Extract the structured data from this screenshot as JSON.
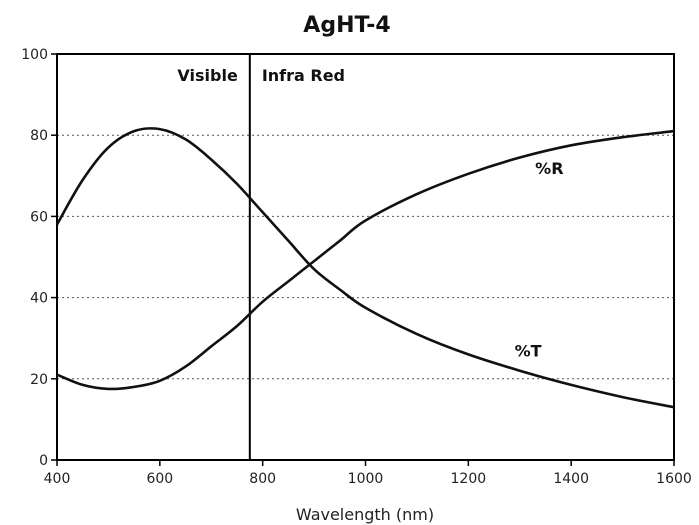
{
  "chart_data": {
    "type": "line",
    "title": "AgHT-4",
    "xlabel": "Wavelength (nm)",
    "ylabel": "",
    "xlim": [
      400,
      1600
    ],
    "ylim": [
      0,
      100
    ],
    "xticks": [
      400,
      600,
      800,
      1000,
      1200,
      1400,
      1600
    ],
    "yticks": [
      0,
      20,
      40,
      60,
      80,
      100
    ],
    "grid": "horizontal-dotted",
    "divider_x": 775,
    "regions": [
      {
        "label": "Visible",
        "side": "left"
      },
      {
        "label": "Infra Red",
        "side": "right"
      }
    ],
    "series": [
      {
        "name": "%T",
        "x": [
          400,
          450,
          500,
          550,
          600,
          650,
          700,
          750,
          800,
          850,
          900,
          950,
          1000,
          1100,
          1200,
          1300,
          1400,
          1500,
          1600
        ],
        "values": [
          58,
          69,
          77,
          81,
          81.5,
          79,
          74,
          68,
          61,
          54,
          47,
          42,
          37.5,
          31,
          26,
          22,
          18.5,
          15.5,
          13
        ]
      },
      {
        "name": "%R",
        "x": [
          400,
          450,
          500,
          550,
          600,
          650,
          700,
          750,
          800,
          850,
          900,
          950,
          1000,
          1100,
          1200,
          1300,
          1400,
          1500,
          1600
        ],
        "values": [
          21,
          18.5,
          17.5,
          18,
          19.5,
          23,
          28,
          33,
          39,
          44,
          49,
          54,
          59,
          65.5,
          70.5,
          74.5,
          77.5,
          79.5,
          81
        ]
      }
    ]
  }
}
